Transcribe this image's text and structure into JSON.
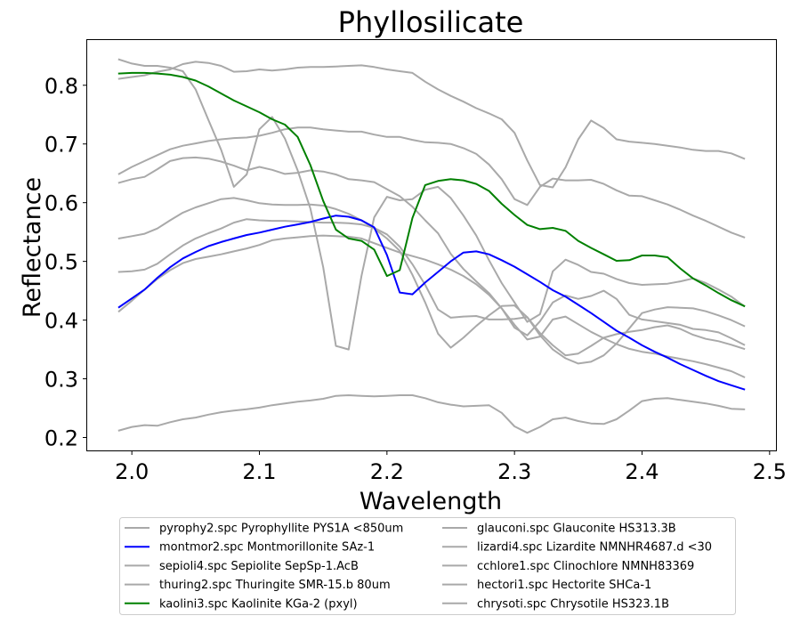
{
  "chart_data": {
    "type": "line",
    "title": "Phyllosilicate",
    "xlabel": "Wavelength",
    "ylabel": "Reflectance",
    "xlim": [
      1.965,
      2.505
    ],
    "ylim": [
      0.178,
      0.877
    ],
    "xticks": [
      2.0,
      2.1,
      2.2,
      2.3,
      2.4,
      2.5
    ],
    "xtick_labels": [
      "2.0",
      "2.1",
      "2.2",
      "2.3",
      "2.4",
      "2.5"
    ],
    "yticks": [
      0.2,
      0.3,
      0.4,
      0.5,
      0.6,
      0.7,
      0.8
    ],
    "ytick_labels": [
      "0.2",
      "0.3",
      "0.4",
      "0.5",
      "0.6",
      "0.7",
      "0.8"
    ],
    "grid": false,
    "legend": {
      "placement": "bottom-center-outside",
      "columns": 2
    },
    "series": [
      {
        "name": "pyrophy2.spc Pyrophyllite PYS1A <850um",
        "color": "#a9a9a9",
        "x": [
          1.99,
          2.0,
          2.01,
          2.02,
          2.03,
          2.04,
          2.05,
          2.06,
          2.07,
          2.08,
          2.09,
          2.1,
          2.11,
          2.12,
          2.13,
          2.14,
          2.15,
          2.16,
          2.17,
          2.18,
          2.19,
          2.2,
          2.21,
          2.22,
          2.23,
          2.24,
          2.25,
          2.26,
          2.27,
          2.28,
          2.29,
          2.3,
          2.31,
          2.32,
          2.33,
          2.34,
          2.35,
          2.36,
          2.37,
          2.38,
          2.39,
          2.4,
          2.41,
          2.42,
          2.43,
          2.44,
          2.45,
          2.46,
          2.47,
          2.48
        ],
        "y": [
          0.649,
          0.661,
          0.671,
          0.681,
          0.691,
          0.697,
          0.701,
          0.705,
          0.708,
          0.71,
          0.711,
          0.714,
          0.719,
          0.725,
          0.728,
          0.728,
          0.725,
          0.723,
          0.721,
          0.721,
          0.716,
          0.712,
          0.712,
          0.707,
          0.703,
          0.702,
          0.7,
          0.693,
          0.683,
          0.665,
          0.64,
          0.606,
          0.596,
          0.627,
          0.641,
          0.638,
          0.638,
          0.639,
          0.632,
          0.621,
          0.612,
          0.611,
          0.604,
          0.597,
          0.588,
          0.578,
          0.569,
          0.559,
          0.549,
          0.541
        ]
      },
      {
        "name": "montmor2.spc Montmorillonite SAz-1",
        "color": "#0000ff",
        "x": [
          1.99,
          2.0,
          2.01,
          2.02,
          2.03,
          2.04,
          2.05,
          2.06,
          2.07,
          2.08,
          2.09,
          2.1,
          2.11,
          2.12,
          2.13,
          2.14,
          2.15,
          2.16,
          2.17,
          2.18,
          2.19,
          2.2,
          2.21,
          2.22,
          2.23,
          2.24,
          2.25,
          2.26,
          2.27,
          2.28,
          2.29,
          2.3,
          2.31,
          2.32,
          2.33,
          2.34,
          2.35,
          2.36,
          2.37,
          2.38,
          2.39,
          2.4,
          2.41,
          2.42,
          2.43,
          2.44,
          2.45,
          2.46,
          2.47,
          2.48
        ],
        "y": [
          0.422,
          0.437,
          0.452,
          0.472,
          0.49,
          0.505,
          0.516,
          0.526,
          0.533,
          0.539,
          0.545,
          0.549,
          0.554,
          0.559,
          0.563,
          0.567,
          0.573,
          0.578,
          0.576,
          0.57,
          0.558,
          0.511,
          0.447,
          0.444,
          0.464,
          0.482,
          0.5,
          0.515,
          0.517,
          0.512,
          0.502,
          0.491,
          0.478,
          0.465,
          0.451,
          0.44,
          0.426,
          0.412,
          0.397,
          0.382,
          0.37,
          0.357,
          0.346,
          0.336,
          0.325,
          0.315,
          0.305,
          0.296,
          0.289,
          0.282
        ]
      },
      {
        "name": "sepioli4.spc Sepiolite SepSp-1.AcB",
        "color": "#a9a9a9",
        "x": [
          1.99,
          2.0,
          2.01,
          2.02,
          2.03,
          2.04,
          2.05,
          2.06,
          2.07,
          2.08,
          2.09,
          2.1,
          2.11,
          2.12,
          2.13,
          2.14,
          2.15,
          2.16,
          2.17,
          2.18,
          2.19,
          2.2,
          2.21,
          2.22,
          2.23,
          2.24,
          2.25,
          2.26,
          2.27,
          2.28,
          2.29,
          2.3,
          2.31,
          2.32,
          2.33,
          2.34,
          2.35,
          2.36,
          2.37,
          2.38,
          2.39,
          2.4,
          2.41,
          2.42,
          2.43,
          2.44,
          2.45,
          2.46,
          2.47,
          2.48
        ],
        "y": [
          0.844,
          0.837,
          0.833,
          0.833,
          0.83,
          0.824,
          0.793,
          0.741,
          0.69,
          0.627,
          0.648,
          0.725,
          0.746,
          0.709,
          0.655,
          0.59,
          0.49,
          0.356,
          0.35,
          0.475,
          0.575,
          0.61,
          0.604,
          0.606,
          0.622,
          0.627,
          0.608,
          0.578,
          0.544,
          0.502,
          0.463,
          0.43,
          0.397,
          0.41,
          0.483,
          0.503,
          0.494,
          0.482,
          0.479,
          0.47,
          0.463,
          0.46,
          0.461,
          0.462,
          0.466,
          0.471,
          0.463,
          0.452,
          0.44,
          0.424
        ]
      },
      {
        "name": "thuring2.spc Thuringite SMR-15.b  80um",
        "color": "#a9a9a9",
        "x": [
          1.99,
          2.0,
          2.01,
          2.02,
          2.03,
          2.04,
          2.05,
          2.06,
          2.07,
          2.08,
          2.09,
          2.1,
          2.11,
          2.12,
          2.13,
          2.14,
          2.15,
          2.16,
          2.17,
          2.18,
          2.19,
          2.2,
          2.21,
          2.22,
          2.23,
          2.24,
          2.25,
          2.26,
          2.27,
          2.28,
          2.29,
          2.3,
          2.31,
          2.32,
          2.33,
          2.34,
          2.35,
          2.36,
          2.37,
          2.38,
          2.39,
          2.4,
          2.41,
          2.42,
          2.43,
          2.44,
          2.45,
          2.46,
          2.47,
          2.48
        ],
        "y": [
          0.415,
          0.433,
          0.452,
          0.47,
          0.485,
          0.497,
          0.504,
          0.508,
          0.512,
          0.517,
          0.522,
          0.528,
          0.536,
          0.539,
          0.541,
          0.543,
          0.544,
          0.543,
          0.542,
          0.539,
          0.531,
          0.523,
          0.515,
          0.509,
          0.503,
          0.495,
          0.486,
          0.475,
          0.461,
          0.443,
          0.42,
          0.392,
          0.367,
          0.372,
          0.401,
          0.406,
          0.393,
          0.38,
          0.369,
          0.359,
          0.351,
          0.346,
          0.343,
          0.338,
          0.334,
          0.33,
          0.325,
          0.319,
          0.313,
          0.303
        ]
      },
      {
        "name": "kaolini3.spc Kaolinite KGa-2 (pxyl)",
        "color": "#008000",
        "x": [
          1.99,
          2.0,
          2.01,
          2.02,
          2.03,
          2.04,
          2.05,
          2.06,
          2.07,
          2.08,
          2.09,
          2.1,
          2.11,
          2.12,
          2.13,
          2.14,
          2.15,
          2.16,
          2.17,
          2.18,
          2.19,
          2.2,
          2.21,
          2.22,
          2.23,
          2.24,
          2.25,
          2.26,
          2.27,
          2.28,
          2.29,
          2.3,
          2.31,
          2.32,
          2.33,
          2.34,
          2.35,
          2.36,
          2.37,
          2.38,
          2.39,
          2.4,
          2.41,
          2.42,
          2.43,
          2.44,
          2.45,
          2.46,
          2.47,
          2.48
        ],
        "y": [
          0.82,
          0.821,
          0.821,
          0.82,
          0.818,
          0.814,
          0.808,
          0.798,
          0.786,
          0.774,
          0.764,
          0.754,
          0.742,
          0.733,
          0.712,
          0.664,
          0.603,
          0.554,
          0.539,
          0.535,
          0.52,
          0.475,
          0.485,
          0.574,
          0.63,
          0.637,
          0.64,
          0.638,
          0.632,
          0.62,
          0.598,
          0.579,
          0.562,
          0.555,
          0.557,
          0.552,
          0.535,
          0.523,
          0.512,
          0.501,
          0.502,
          0.51,
          0.51,
          0.507,
          0.488,
          0.471,
          0.459,
          0.446,
          0.434,
          0.424
        ]
      },
      {
        "name": "glauconi.spc Glauconite HS313.3B",
        "color": "#a9a9a9",
        "x": [
          1.99,
          2.0,
          2.01,
          2.02,
          2.03,
          2.04,
          2.05,
          2.06,
          2.07,
          2.08,
          2.09,
          2.1,
          2.11,
          2.12,
          2.13,
          2.14,
          2.15,
          2.16,
          2.17,
          2.18,
          2.19,
          2.2,
          2.21,
          2.22,
          2.23,
          2.24,
          2.25,
          2.26,
          2.27,
          2.28,
          2.29,
          2.3,
          2.31,
          2.32,
          2.33,
          2.34,
          2.35,
          2.36,
          2.37,
          2.38,
          2.39,
          2.4,
          2.41,
          2.42,
          2.43,
          2.44,
          2.45,
          2.46,
          2.47,
          2.48
        ],
        "y": [
          0.482,
          0.483,
          0.486,
          0.496,
          0.512,
          0.527,
          0.539,
          0.548,
          0.556,
          0.566,
          0.572,
          0.57,
          0.569,
          0.569,
          0.568,
          0.567,
          0.566,
          0.566,
          0.565,
          0.563,
          0.557,
          0.546,
          0.525,
          0.495,
          0.46,
          0.418,
          0.404,
          0.406,
          0.407,
          0.401,
          0.401,
          0.402,
          0.405,
          0.374,
          0.35,
          0.335,
          0.326,
          0.329,
          0.34,
          0.36,
          0.386,
          0.412,
          0.418,
          0.422,
          0.421,
          0.42,
          0.415,
          0.408,
          0.4,
          0.39
        ]
      },
      {
        "name": "lizardi4.spc Lizardite NMNHR4687.d <30",
        "color": "#a9a9a9",
        "x": [
          1.99,
          2.0,
          2.01,
          2.02,
          2.03,
          2.04,
          2.05,
          2.06,
          2.07,
          2.08,
          2.09,
          2.1,
          2.11,
          2.12,
          2.13,
          2.14,
          2.15,
          2.16,
          2.17,
          2.18,
          2.19,
          2.2,
          2.21,
          2.22,
          2.23,
          2.24,
          2.25,
          2.26,
          2.27,
          2.28,
          2.29,
          2.3,
          2.31,
          2.32,
          2.33,
          2.34,
          2.35,
          2.36,
          2.37,
          2.38,
          2.39,
          2.4,
          2.41,
          2.42,
          2.43,
          2.44,
          2.45,
          2.46,
          2.47,
          2.48
        ],
        "y": [
          0.811,
          0.814,
          0.817,
          0.823,
          0.827,
          0.836,
          0.84,
          0.838,
          0.833,
          0.823,
          0.824,
          0.827,
          0.825,
          0.827,
          0.83,
          0.831,
          0.831,
          0.832,
          0.833,
          0.834,
          0.831,
          0.827,
          0.824,
          0.821,
          0.806,
          0.793,
          0.782,
          0.772,
          0.761,
          0.752,
          0.742,
          0.719,
          0.672,
          0.63,
          0.626,
          0.66,
          0.708,
          0.74,
          0.727,
          0.708,
          0.704,
          0.702,
          0.7,
          0.697,
          0.694,
          0.69,
          0.688,
          0.688,
          0.684,
          0.675
        ]
      },
      {
        "name": "cchlore1.spc Clinochlore NMNH83369",
        "color": "#a9a9a9",
        "x": [
          1.99,
          2.0,
          2.01,
          2.02,
          2.03,
          2.04,
          2.05,
          2.06,
          2.07,
          2.08,
          2.09,
          2.1,
          2.11,
          2.12,
          2.13,
          2.14,
          2.15,
          2.16,
          2.17,
          2.18,
          2.19,
          2.2,
          2.21,
          2.22,
          2.23,
          2.24,
          2.25,
          2.26,
          2.27,
          2.28,
          2.29,
          2.3,
          2.31,
          2.32,
          2.33,
          2.34,
          2.35,
          2.36,
          2.37,
          2.38,
          2.39,
          2.4,
          2.41,
          2.42,
          2.43,
          2.44,
          2.45,
          2.46,
          2.47,
          2.48
        ],
        "y": [
          0.634,
          0.64,
          0.644,
          0.657,
          0.671,
          0.676,
          0.677,
          0.675,
          0.67,
          0.663,
          0.655,
          0.661,
          0.656,
          0.649,
          0.651,
          0.655,
          0.653,
          0.648,
          0.64,
          0.638,
          0.635,
          0.623,
          0.611,
          0.593,
          0.57,
          0.548,
          0.513,
          0.487,
          0.466,
          0.446,
          0.42,
          0.387,
          0.374,
          0.398,
          0.43,
          0.442,
          0.436,
          0.441,
          0.45,
          0.436,
          0.409,
          0.401,
          0.398,
          0.395,
          0.392,
          0.385,
          0.383,
          0.379,
          0.369,
          0.358
        ]
      },
      {
        "name": "hectori1.spc Hectorite SHCa-1",
        "color": "#a9a9a9",
        "x": [
          1.99,
          2.0,
          2.01,
          2.02,
          2.03,
          2.04,
          2.05,
          2.06,
          2.07,
          2.08,
          2.09,
          2.1,
          2.11,
          2.12,
          2.13,
          2.14,
          2.15,
          2.16,
          2.17,
          2.18,
          2.19,
          2.2,
          2.21,
          2.22,
          2.23,
          2.24,
          2.25,
          2.26,
          2.27,
          2.28,
          2.29,
          2.3,
          2.31,
          2.32,
          2.33,
          2.34,
          2.35,
          2.36,
          2.37,
          2.38,
          2.39,
          2.4,
          2.41,
          2.42,
          2.43,
          2.44,
          2.45,
          2.46,
          2.47,
          2.48
        ],
        "y": [
          0.539,
          0.543,
          0.547,
          0.556,
          0.57,
          0.583,
          0.592,
          0.599,
          0.606,
          0.608,
          0.604,
          0.599,
          0.597,
          0.596,
          0.596,
          0.597,
          0.595,
          0.589,
          0.581,
          0.57,
          0.556,
          0.539,
          0.518,
          0.477,
          0.43,
          0.377,
          0.353,
          0.37,
          0.39,
          0.408,
          0.424,
          0.425,
          0.405,
          0.378,
          0.357,
          0.34,
          0.343,
          0.356,
          0.37,
          0.376,
          0.38,
          0.383,
          0.388,
          0.391,
          0.385,
          0.375,
          0.368,
          0.364,
          0.358,
          0.351
        ]
      },
      {
        "name": "chrysoti.spc Chrysotile HS323.1B",
        "color": "#a9a9a9",
        "x": [
          1.99,
          2.0,
          2.01,
          2.02,
          2.03,
          2.04,
          2.05,
          2.06,
          2.07,
          2.08,
          2.09,
          2.1,
          2.11,
          2.12,
          2.13,
          2.14,
          2.15,
          2.16,
          2.17,
          2.18,
          2.19,
          2.2,
          2.21,
          2.22,
          2.23,
          2.24,
          2.25,
          2.26,
          2.27,
          2.28,
          2.29,
          2.3,
          2.31,
          2.32,
          2.33,
          2.34,
          2.35,
          2.36,
          2.37,
          2.38,
          2.39,
          2.4,
          2.41,
          2.42,
          2.43,
          2.44,
          2.45,
          2.46,
          2.47,
          2.48
        ],
        "y": [
          0.212,
          0.218,
          0.221,
          0.22,
          0.226,
          0.231,
          0.234,
          0.239,
          0.243,
          0.246,
          0.248,
          0.251,
          0.255,
          0.258,
          0.261,
          0.263,
          0.266,
          0.271,
          0.272,
          0.271,
          0.27,
          0.271,
          0.272,
          0.272,
          0.267,
          0.26,
          0.256,
          0.253,
          0.254,
          0.255,
          0.242,
          0.219,
          0.208,
          0.218,
          0.231,
          0.234,
          0.228,
          0.224,
          0.223,
          0.231,
          0.246,
          0.262,
          0.266,
          0.267,
          0.264,
          0.261,
          0.258,
          0.254,
          0.249,
          0.248
        ]
      }
    ]
  }
}
